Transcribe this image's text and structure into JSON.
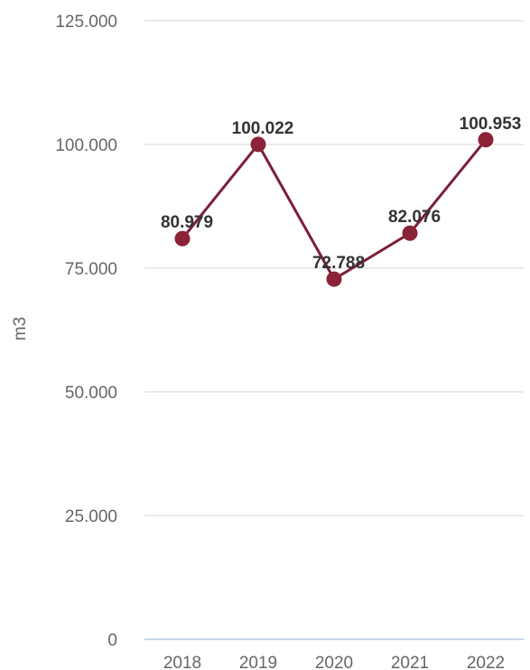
{
  "chart_data": {
    "type": "line",
    "categories": [
      "2018",
      "2019",
      "2020",
      "2021",
      "2022"
    ],
    "series": [
      {
        "values": [
          80.979,
          100.022,
          72.788,
          82.076,
          100.953
        ],
        "labels": [
          "80.979",
          "100.022",
          "72.788",
          "82.076",
          "100.953"
        ],
        "color": "#7b1f35"
      }
    ],
    "ylabel": "m3",
    "ylim": [
      0,
      125
    ],
    "yticks": [
      0,
      25,
      50,
      75,
      100,
      125
    ],
    "ytick_labels": [
      "0",
      "25.000",
      "50.000",
      "75.000",
      "100.000",
      "125.000"
    ],
    "grid": true,
    "legend": "none",
    "colors": {
      "line": "#7b1f35",
      "marker": "#8b2238",
      "grid": "#e4e4e4",
      "baseline": "#c9d3ea",
      "tick_text": "#666666",
      "label_text": "#333333"
    }
  }
}
